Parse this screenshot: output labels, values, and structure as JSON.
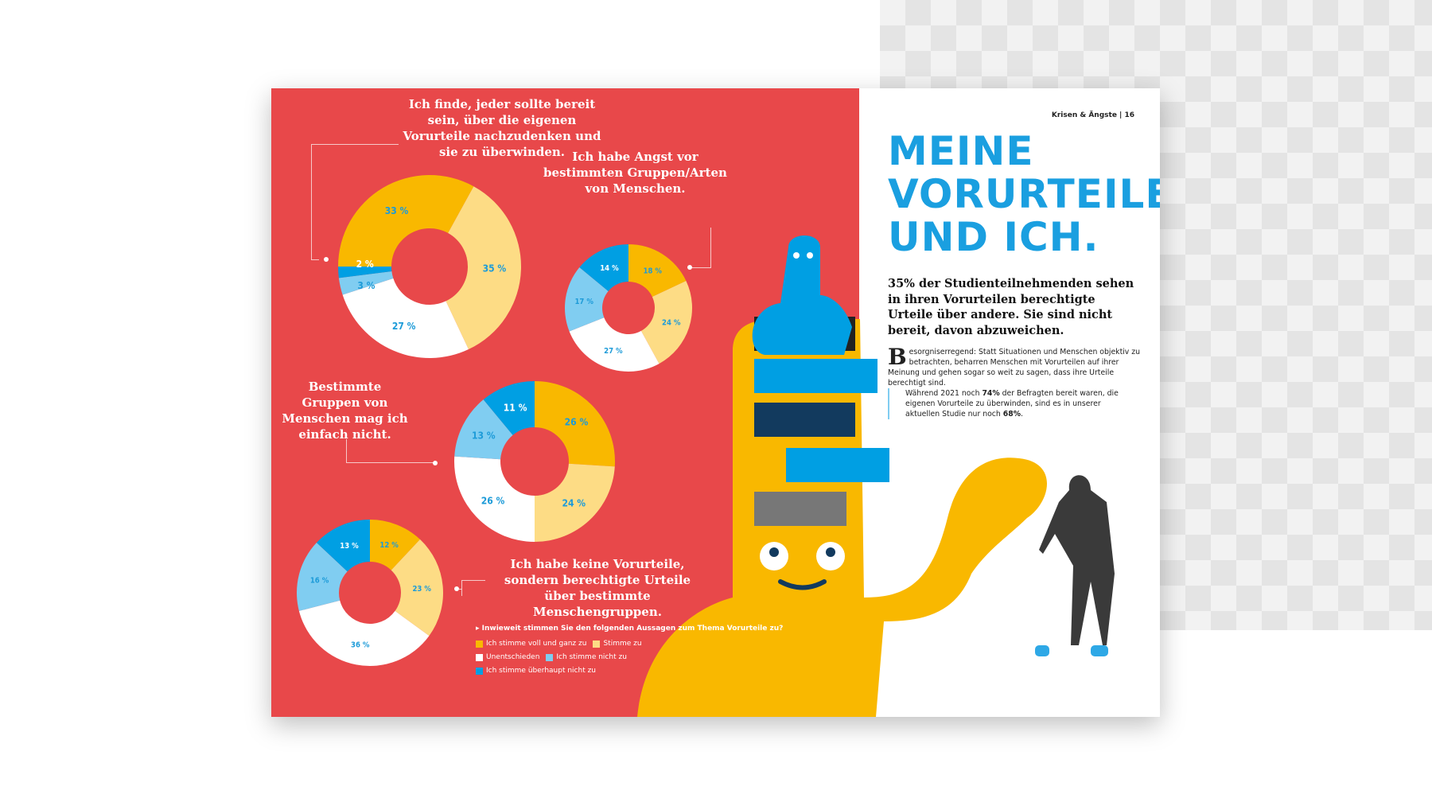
{
  "header": {
    "section": "Krisen & Ängste | 16"
  },
  "article": {
    "title_lines": [
      "MEINE",
      "VORURTEILE",
      "UND ICH."
    ],
    "lead": "35% der Studienteilnehmenden sehen in ihren Vorurteilen berechtigte Urteile über andere. Sie sind nicht bereit, davon abzuweichen.",
    "body_initial": "B",
    "body": "esorgniserregend: Statt Situationen und Menschen objektiv zu betrachten, beharren Menschen mit Vorurteilen auf ihrer Meinung und gehen sogar so weit zu sagen, dass ihre Urteile berechtigt sind.",
    "quote_a": "Während 2021 noch ",
    "quote_b": "74%",
    "quote_c": " der Befragten bereit waren, die eigenen Vorurteile zu überwinden, sind es in unserer aktuellen Studie nur noch ",
    "quote_d": "68%",
    "quote_e": "."
  },
  "colors": {
    "background": "#E8484A",
    "voll": "#F9B800",
    "stimme": "#FDDC85",
    "unentschieden": "#FFFFFF",
    "nicht": "#80CDF1",
    "ueberhaupt": "#009FE3",
    "label": "#1D9BD8"
  },
  "legend": {
    "question": "Inwieweit stimmen Sie den folgenden Aussagen zum Thema Vorurteile zu?",
    "items": [
      "Ich stimme voll und ganz zu",
      "Stimme zu",
      "Unentschieden",
      "Ich stimme nicht zu",
      "Ich stimme überhaupt nicht zu"
    ]
  },
  "chart_data": [
    {
      "type": "pie",
      "variant": "donut",
      "title": "Ich finde, jeder sollte bereit sein, über die eigenen Vorurteile nachzudenken und sie zu überwinden.",
      "categories": [
        "Ich stimme voll und ganz zu",
        "Stimme zu",
        "Unentschieden",
        "Ich stimme nicht zu",
        "Ich stimme überhaupt nicht zu"
      ],
      "values": [
        33,
        35,
        27,
        3,
        2
      ],
      "labels": [
        "33 %",
        "35 %",
        "27 %",
        "3 %",
        "2 %"
      ]
    },
    {
      "type": "pie",
      "variant": "donut",
      "title": "Ich habe Angst vor bestimmten Gruppen/Arten von Menschen.",
      "categories": [
        "Ich stimme voll und ganz zu",
        "Stimme zu",
        "Unentschieden",
        "Ich stimme nicht zu",
        "Ich stimme überhaupt nicht zu"
      ],
      "values": [
        18,
        24,
        27,
        17,
        14
      ],
      "labels": [
        "18 %",
        "24 %",
        "27 %",
        "17 %",
        "14 %"
      ]
    },
    {
      "type": "pie",
      "variant": "donut",
      "title": "Bestimmte Gruppen von Menschen mag ich einfach nicht.",
      "categories": [
        "Ich stimme voll und ganz zu",
        "Stimme zu",
        "Unentschieden",
        "Ich stimme nicht zu",
        "Ich stimme überhaupt nicht zu"
      ],
      "values": [
        26,
        24,
        26,
        13,
        11
      ],
      "labels": [
        "26 %",
        "24 %",
        "26 %",
        "13 %",
        "11 %"
      ]
    },
    {
      "type": "pie",
      "variant": "donut",
      "title": "Ich habe keine Vorurteile, sondern berechtigte Urteile über bestimmte Menschengruppen.",
      "categories": [
        "Ich stimme voll und ganz zu",
        "Stimme zu",
        "Unentschieden",
        "Ich stimme nicht zu",
        "Ich stimme überhaupt nicht zu"
      ],
      "values": [
        12,
        23,
        36,
        16,
        13
      ],
      "labels": [
        "12 %",
        "23 %",
        "36 %",
        "16 %",
        "13 %"
      ]
    }
  ]
}
